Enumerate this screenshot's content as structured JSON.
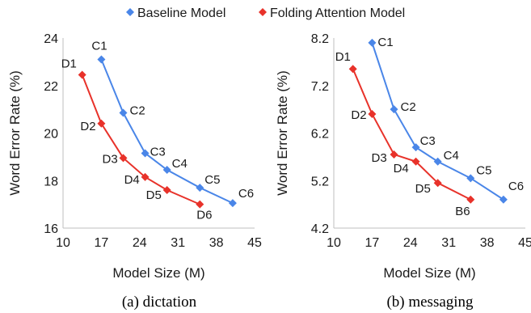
{
  "legend": {
    "position": "top-center",
    "items": [
      {
        "label": "Baseline Model",
        "color": "#4a86e8",
        "marker": "diamond"
      },
      {
        "label": "Folding Attention Model",
        "color": "#e8322a",
        "marker": "diamond"
      }
    ]
  },
  "chart_data": [
    {
      "type": "line",
      "caption": "(a) dictation",
      "xlabel": "Model Size (M)",
      "ylabel": "Word Error Rate (%)",
      "xlim": [
        10,
        45
      ],
      "ylim": [
        16,
        24
      ],
      "xticks": [
        "10",
        "17",
        "24",
        "31",
        "38",
        "45"
      ],
      "yticks": [
        "16",
        "18",
        "20",
        "22",
        "24"
      ],
      "grid": false,
      "series": [
        {
          "name": "Baseline Model",
          "color": "#4a86e8",
          "points": [
            {
              "x": 17.0,
              "y": 23.1,
              "label": "C1"
            },
            {
              "x": 21.0,
              "y": 20.85,
              "label": "C2"
            },
            {
              "x": 25.0,
              "y": 19.15,
              "label": "C3"
            },
            {
              "x": 29.0,
              "y": 18.45,
              "label": "C4"
            },
            {
              "x": 35.0,
              "y": 17.7,
              "label": "C5"
            },
            {
              "x": 41.0,
              "y": 17.05,
              "label": "C6"
            }
          ]
        },
        {
          "name": "Folding Attention Model",
          "color": "#e8322a",
          "points": [
            {
              "x": 13.5,
              "y": 22.45,
              "label": "D1"
            },
            {
              "x": 17.0,
              "y": 20.4,
              "label": "D2"
            },
            {
              "x": 21.0,
              "y": 18.95,
              "label": "D3"
            },
            {
              "x": 25.0,
              "y": 18.15,
              "label": "D4"
            },
            {
              "x": 29.0,
              "y": 17.6,
              "label": "D5"
            },
            {
              "x": 35.0,
              "y": 17.0,
              "label": "D6"
            }
          ]
        }
      ]
    },
    {
      "type": "line",
      "caption": "(b) messaging",
      "xlabel": "Model Size (M)",
      "ylabel": "Word Error Rate (%)",
      "xlim": [
        10,
        45
      ],
      "ylim": [
        4.2,
        8.2
      ],
      "xticks": [
        "10",
        "17",
        "24",
        "31",
        "38",
        "45"
      ],
      "yticks": [
        "4.2",
        "5.2",
        "6.2",
        "7.2",
        "8.2"
      ],
      "grid": false,
      "series": [
        {
          "name": "Baseline Model",
          "color": "#4a86e8",
          "points": [
            {
              "x": 17.0,
              "y": 8.1,
              "label": "C1"
            },
            {
              "x": 21.0,
              "y": 6.7,
              "label": "C2"
            },
            {
              "x": 25.0,
              "y": 5.9,
              "label": "C3"
            },
            {
              "x": 29.0,
              "y": 5.6,
              "label": "C4"
            },
            {
              "x": 35.0,
              "y": 5.25,
              "label": "C5"
            },
            {
              "x": 41.0,
              "y": 4.8,
              "label": "C6"
            }
          ]
        },
        {
          "name": "Folding Attention Model",
          "color": "#e8322a",
          "points": [
            {
              "x": 13.5,
              "y": 7.55,
              "label": "D1"
            },
            {
              "x": 17.0,
              "y": 6.6,
              "label": "D2"
            },
            {
              "x": 21.0,
              "y": 5.75,
              "label": "D3"
            },
            {
              "x": 25.0,
              "y": 5.6,
              "label": "D4"
            },
            {
              "x": 29.0,
              "y": 5.15,
              "label": "D5"
            },
            {
              "x": 35.0,
              "y": 4.8,
              "label": "B6"
            }
          ]
        }
      ]
    }
  ]
}
